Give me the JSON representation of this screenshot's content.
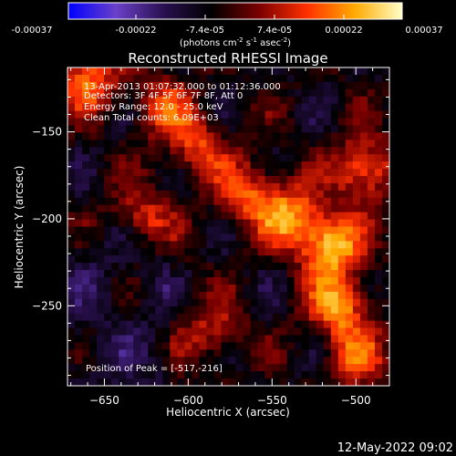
{
  "colorbar": {
    "ticks": [
      "-0.00037",
      "-0.00022",
      "-7.4e-05",
      "7.4e-05",
      "0.00022",
      "0.00037"
    ],
    "units_prefix": "(photons cm",
    "units_exp1": "-2",
    "units_mid": " s",
    "units_exp2": "-1",
    "units_mid2": " asec",
    "units_exp3": "-2",
    "units_suffix": ")",
    "stops": [
      "#0000ff",
      "#6a40c8",
      "#2a1050",
      "#000000",
      "#7a0000",
      "#ff3000",
      "#ffaa00",
      "#ffffc8"
    ]
  },
  "chart_data": {
    "type": "heatmap",
    "title": "Reconstructed RHESSI Image",
    "xlabel": "Heliocentric X (arcsec)",
    "ylabel": "Heliocentric Y (arcsec)",
    "xlim": [
      -672,
      -480
    ],
    "ylim": [
      -296,
      -113
    ],
    "x_ticks": [
      -650,
      -600,
      -550,
      -500
    ],
    "y_ticks": [
      -150,
      -200,
      -250
    ],
    "info_lines": [
      "13-Apr-2013 01:07:32.000 to 01:12:36.000",
      "Detectors: 3F 4F 5F 6F 7F 8F, Att 0",
      "Energy Range: 12.0 - 25.0 keV",
      "Clean    Total counts: 6.09E+03"
    ],
    "peak_label": "Position of Peak = [-517,-216]",
    "peak": [
      -517,
      -216
    ],
    "value_range": [
      -0.00037,
      0.00037
    ],
    "hot_spots": [
      {
        "x": -515,
        "y": -215,
        "amp": 1.0
      },
      {
        "x": -540,
        "y": -198,
        "amp": 0.75
      },
      {
        "x": -565,
        "y": -185,
        "amp": 0.6
      },
      {
        "x": -595,
        "y": -158,
        "amp": 0.55
      },
      {
        "x": -627,
        "y": -200,
        "amp": 0.5
      },
      {
        "x": -510,
        "y": -250,
        "amp": 0.8
      },
      {
        "x": -495,
        "y": -172,
        "amp": 0.75
      },
      {
        "x": -660,
        "y": -120,
        "amp": 0.7
      },
      {
        "x": -615,
        "y": -135,
        "amp": 0.5
      },
      {
        "x": -585,
        "y": -265,
        "amp": 0.45
      },
      {
        "x": -500,
        "y": -280,
        "amp": 0.55
      }
    ]
  },
  "footer": {
    "date": "12-May-2022 09:02"
  }
}
